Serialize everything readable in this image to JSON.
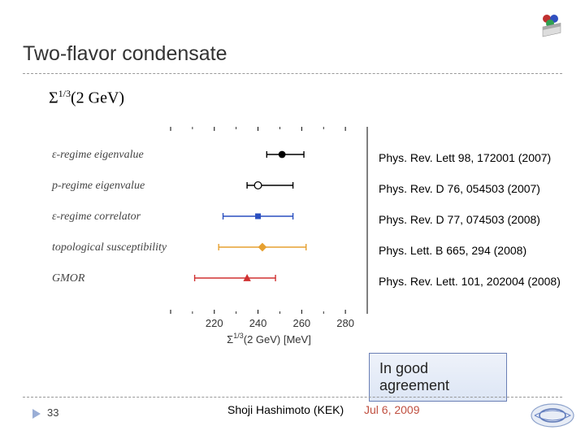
{
  "title": "Two-flavor condensate",
  "formula_html": "Σ<sup>1/3</sup>(2 GeV)",
  "plot": {
    "type": "scatter-error",
    "background_color": "#ffffff",
    "xlim": [
      200,
      290
    ],
    "xticks": [
      220,
      240,
      260,
      280
    ],
    "row_labels": [
      "ε-regime eigenvalue",
      "p-regime eigenvalue",
      "ε-regime correlator",
      "topological susceptibility",
      "GMOR"
    ],
    "axis_label": "Σ^{1/3}(2 GeV) [MeV]",
    "label_fontsize": 13,
    "tick_fontsize": 12,
    "points": [
      {
        "y": 0,
        "x": 251,
        "xerr_lo": 7,
        "xerr_hi": 10,
        "marker": "circle-filled",
        "color": "#000000"
      },
      {
        "y": 1,
        "x": 240,
        "xerr_lo": 5,
        "xerr_hi": 16,
        "marker": "circle-open",
        "color": "#000000"
      },
      {
        "y": 2,
        "x": 240,
        "xerr_lo": 16,
        "xerr_hi": 16,
        "marker": "square-filled",
        "color": "#2a4fc0"
      },
      {
        "y": 3,
        "x": 242,
        "xerr_lo": 20,
        "xerr_hi": 20,
        "marker": "diamond-filled",
        "color": "#e6a030"
      },
      {
        "y": 4,
        "x": 235,
        "xerr_lo": 24,
        "xerr_hi": 13,
        "marker": "triangle-filled",
        "color": "#d03030"
      }
    ],
    "marker_size": 7,
    "error_cap": 4
  },
  "references": [
    "Phys. Rev. Lett 98, 172001 (2007)",
    "Phys. Rev. D 76, 054503 (2007)",
    "Phys. Rev. D 77, 074503 (2008)",
    "Phys. Lett. B 665, 294 (2008)",
    "Phys. Rev. Lett. 101, 202004 (2008)"
  ],
  "callout": "In good agreement",
  "footer": {
    "page": "33",
    "center": "Shoji Hashimoto (KEK)",
    "right": "Jul 6, 2009"
  },
  "colors": {
    "title": "#333333",
    "rule": "#999999",
    "callout_border": "#6a7fb5",
    "callout_bg_top": "#eef2fa",
    "callout_bg_bot": "#dde6f5",
    "date": "#c05040"
  }
}
